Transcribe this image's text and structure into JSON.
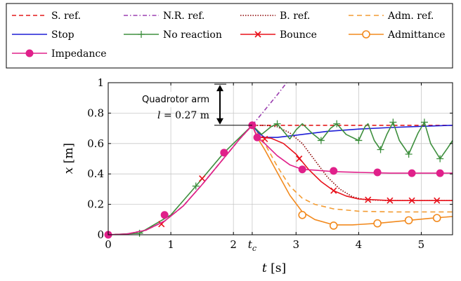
{
  "chart_data": {
    "type": "line",
    "xlabel": "t [s]",
    "ylabel": "x [m]",
    "xlim": [
      0,
      5.5
    ],
    "ylim": [
      0,
      1
    ],
    "xticks": [
      {
        "value": 0,
        "label": "0"
      },
      {
        "value": 1,
        "label": "1"
      },
      {
        "value": 2,
        "label": "2"
      },
      {
        "value": 2.3,
        "label": "t_c"
      },
      {
        "value": 3,
        "label": "3"
      },
      {
        "value": 4,
        "label": "4"
      },
      {
        "value": 5,
        "label": "5"
      }
    ],
    "yticks": [
      {
        "value": 0,
        "label": "0"
      },
      {
        "value": 0.2,
        "label": "0.2"
      },
      {
        "value": 0.4,
        "label": "0.4"
      },
      {
        "value": 0.6,
        "label": "0.6"
      },
      {
        "value": 0.8,
        "label": "0.8"
      },
      {
        "value": 1,
        "label": "1"
      }
    ],
    "grid": true,
    "legend_position": "top",
    "annotation": {
      "title": "Quadrotor arm",
      "formula": "l = 0.27 m",
      "x": 2.3,
      "y_from": 0.72,
      "y_to": 0.99
    },
    "series": [
      {
        "name": "S. ref.",
        "color": "#e41a1c",
        "dash": "dash",
        "marker": "none",
        "points": [
          [
            0,
            0
          ],
          [
            0.3,
            0.005
          ],
          [
            0.6,
            0.03
          ],
          [
            0.9,
            0.09
          ],
          [
            1.2,
            0.19
          ],
          [
            1.5,
            0.33
          ],
          [
            1.8,
            0.48
          ],
          [
            2.1,
            0.63
          ],
          [
            2.3,
            0.72
          ],
          [
            3,
            0.72
          ],
          [
            4,
            0.72
          ],
          [
            5,
            0.72
          ],
          [
            5.5,
            0.72
          ]
        ]
      },
      {
        "name": "N.R. ref.",
        "color": "#9b3fb0",
        "dash": "dashdot",
        "marker": "none",
        "points": [
          [
            0,
            0
          ],
          [
            0.3,
            0.005
          ],
          [
            0.6,
            0.03
          ],
          [
            0.9,
            0.09
          ],
          [
            1.2,
            0.19
          ],
          [
            1.5,
            0.33
          ],
          [
            1.8,
            0.48
          ],
          [
            2.1,
            0.63
          ],
          [
            2.3,
            0.72
          ],
          [
            2.5,
            0.82
          ],
          [
            2.7,
            0.92
          ],
          [
            2.85,
            1.0
          ]
        ]
      },
      {
        "name": "B. ref.",
        "color": "#8b0000",
        "dash": "dot",
        "marker": "none",
        "points": [
          [
            2.3,
            0.72
          ],
          [
            2.5,
            0.72
          ],
          [
            2.7,
            0.71
          ],
          [
            2.9,
            0.67
          ],
          [
            3.1,
            0.6
          ],
          [
            3.3,
            0.49
          ],
          [
            3.5,
            0.38
          ],
          [
            3.7,
            0.3
          ],
          [
            3.9,
            0.25
          ],
          [
            4.1,
            0.23
          ],
          [
            4.5,
            0.225
          ],
          [
            5,
            0.225
          ],
          [
            5.5,
            0.225
          ]
        ]
      },
      {
        "name": "Adm. ref.",
        "color": "#f39c33",
        "dash": "longdash",
        "marker": "none",
        "points": [
          [
            2.3,
            0.72
          ],
          [
            2.5,
            0.6
          ],
          [
            2.7,
            0.45
          ],
          [
            2.9,
            0.32
          ],
          [
            3.1,
            0.24
          ],
          [
            3.3,
            0.2
          ],
          [
            3.6,
            0.17
          ],
          [
            4,
            0.155
          ],
          [
            4.5,
            0.15
          ],
          [
            5,
            0.15
          ],
          [
            5.5,
            0.15
          ]
        ]
      },
      {
        "name": "Stop",
        "color": "#1f1fd6",
        "dash": "solid",
        "marker": "none",
        "points": [
          [
            2.3,
            0.72
          ],
          [
            2.4,
            0.67
          ],
          [
            2.5,
            0.64
          ],
          [
            2.7,
            0.64
          ],
          [
            3,
            0.655
          ],
          [
            3.5,
            0.68
          ],
          [
            4,
            0.695
          ],
          [
            4.5,
            0.705
          ],
          [
            5,
            0.713
          ],
          [
            5.5,
            0.72
          ]
        ]
      },
      {
        "name": "No reaction",
        "color": "#3e8f3e",
        "dash": "solid",
        "marker": "plus",
        "points": [
          [
            0,
            0
          ],
          [
            0.5,
            0.01
          ],
          [
            1,
            0.13
          ],
          [
            1.4,
            0.32
          ],
          [
            1.85,
            0.54
          ],
          [
            2.3,
            0.72
          ],
          [
            2.45,
            0.66
          ],
          [
            2.6,
            0.71
          ],
          [
            2.7,
            0.73
          ],
          [
            2.8,
            0.68
          ],
          [
            2.9,
            0.63
          ],
          [
            3.0,
            0.69
          ],
          [
            3.1,
            0.73
          ],
          [
            3.25,
            0.67
          ],
          [
            3.4,
            0.62
          ],
          [
            3.55,
            0.7
          ],
          [
            3.65,
            0.73
          ],
          [
            3.8,
            0.66
          ],
          [
            4.0,
            0.62
          ],
          [
            4.1,
            0.71
          ],
          [
            4.15,
            0.73
          ],
          [
            4.25,
            0.62
          ],
          [
            4.35,
            0.56
          ],
          [
            4.45,
            0.66
          ],
          [
            4.55,
            0.74
          ],
          [
            4.65,
            0.62
          ],
          [
            4.8,
            0.53
          ],
          [
            4.95,
            0.67
          ],
          [
            5.05,
            0.74
          ],
          [
            5.15,
            0.6
          ],
          [
            5.3,
            0.5
          ],
          [
            5.42,
            0.57
          ],
          [
            5.5,
            0.62
          ]
        ],
        "markers": [
          [
            0.5,
            0.01
          ],
          [
            1.4,
            0.32
          ],
          [
            2.7,
            0.73
          ],
          [
            3.4,
            0.62
          ],
          [
            3.65,
            0.73
          ],
          [
            4.0,
            0.62
          ],
          [
            4.35,
            0.56
          ],
          [
            4.55,
            0.74
          ],
          [
            4.8,
            0.53
          ],
          [
            5.05,
            0.74
          ],
          [
            5.3,
            0.5
          ]
        ]
      },
      {
        "name": "Bounce",
        "color": "#e8101a",
        "dash": "solid",
        "marker": "cross",
        "points": [
          [
            2.3,
            0.72
          ],
          [
            2.38,
            0.645
          ],
          [
            2.45,
            0.64
          ],
          [
            2.6,
            0.635
          ],
          [
            2.8,
            0.6
          ],
          [
            3.0,
            0.53
          ],
          [
            3.2,
            0.43
          ],
          [
            3.4,
            0.35
          ],
          [
            3.6,
            0.29
          ],
          [
            3.8,
            0.255
          ],
          [
            4.0,
            0.235
          ],
          [
            4.5,
            0.225
          ],
          [
            5,
            0.225
          ],
          [
            5.5,
            0.225
          ]
        ],
        "markers": [
          [
            0.85,
            0.07
          ],
          [
            1.5,
            0.37
          ],
          [
            2.5,
            0.63
          ],
          [
            3.05,
            0.5
          ],
          [
            3.6,
            0.29
          ],
          [
            4.15,
            0.23
          ],
          [
            4.5,
            0.225
          ],
          [
            4.85,
            0.225
          ],
          [
            5.25,
            0.225
          ]
        ]
      },
      {
        "name": "Admittance",
        "color": "#f28a1e",
        "dash": "solid",
        "marker": "circle",
        "points": [
          [
            2.3,
            0.72
          ],
          [
            2.38,
            0.64
          ],
          [
            2.5,
            0.56
          ],
          [
            2.7,
            0.41
          ],
          [
            2.9,
            0.26
          ],
          [
            3.1,
            0.15
          ],
          [
            3.3,
            0.1
          ],
          [
            3.6,
            0.065
          ],
          [
            3.9,
            0.065
          ],
          [
            4.3,
            0.075
          ],
          [
            4.8,
            0.095
          ],
          [
            5.2,
            0.11
          ],
          [
            5.5,
            0.12
          ]
        ],
        "markers": [
          [
            3.1,
            0.13
          ],
          [
            3.6,
            0.06
          ],
          [
            4.3,
            0.075
          ],
          [
            4.8,
            0.095
          ],
          [
            5.25,
            0.11
          ]
        ]
      },
      {
        "name": "Impedance",
        "color": "#e0208a",
        "dash": "solid",
        "marker": "circle-filled",
        "points": [
          [
            0,
            0
          ],
          [
            0.3,
            0.005
          ],
          [
            0.6,
            0.03
          ],
          [
            0.9,
            0.09
          ],
          [
            1.2,
            0.19
          ],
          [
            1.5,
            0.33
          ],
          [
            1.8,
            0.48
          ],
          [
            2.1,
            0.63
          ],
          [
            2.3,
            0.72
          ],
          [
            2.38,
            0.64
          ],
          [
            2.5,
            0.6
          ],
          [
            2.7,
            0.52
          ],
          [
            2.9,
            0.46
          ],
          [
            3.1,
            0.43
          ],
          [
            3.3,
            0.425
          ],
          [
            3.6,
            0.415
          ],
          [
            4,
            0.41
          ],
          [
            4.5,
            0.405
          ],
          [
            5,
            0.405
          ],
          [
            5.5,
            0.405
          ]
        ],
        "markers": [
          [
            0,
            0
          ],
          [
            0.9,
            0.13
          ],
          [
            1.85,
            0.54
          ],
          [
            2.3,
            0.72
          ],
          [
            2.38,
            0.64
          ],
          [
            3.1,
            0.43
          ],
          [
            3.6,
            0.42
          ],
          [
            4.3,
            0.41
          ],
          [
            4.85,
            0.405
          ],
          [
            5.3,
            0.405
          ]
        ]
      }
    ]
  }
}
